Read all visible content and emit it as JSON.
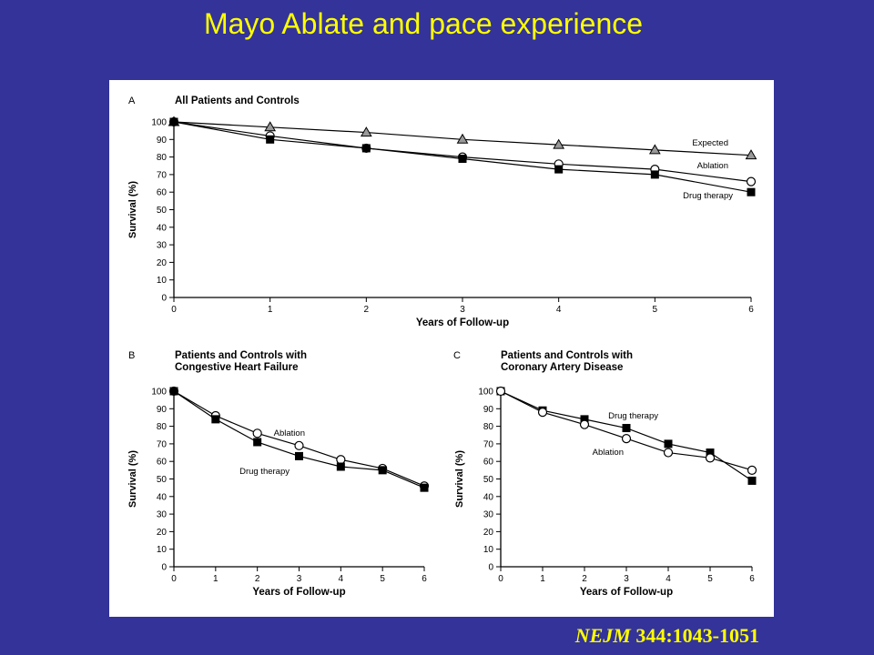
{
  "slide": {
    "title": "Mayo Ablate and pace experience",
    "citation_journal": "NEJM",
    "citation_ref": " 344:1043-1051"
  },
  "colors": {
    "background": "#333399",
    "title": "#ffff00",
    "panel": "#ffffff"
  },
  "chart_data": [
    {
      "type": "line",
      "panel_letter": "A",
      "title": "All Patients and Controls",
      "title_line2": "",
      "xlabel": "Years of Follow-up",
      "ylabel": "Survival (%)",
      "x": [
        0,
        1,
        2,
        3,
        4,
        5,
        6
      ],
      "xlim": [
        0,
        6
      ],
      "ylim": [
        0,
        100
      ],
      "yticks": [
        0,
        10,
        20,
        30,
        40,
        50,
        60,
        70,
        80,
        90,
        100
      ],
      "grid": false,
      "series": [
        {
          "name": "Expected",
          "marker": "triangle",
          "values": [
            100,
            97,
            94,
            90,
            87,
            84,
            81
          ]
        },
        {
          "name": "Ablation",
          "marker": "open-circle",
          "values": [
            100,
            92,
            85,
            80,
            76,
            73,
            66
          ]
        },
        {
          "name": "Drug therapy",
          "marker": "filled-square",
          "values": [
            100,
            90,
            85,
            79,
            73,
            70,
            60
          ]
        }
      ]
    },
    {
      "type": "line",
      "panel_letter": "B",
      "title": "Patients and Controls with",
      "title_line2": "Congestive Heart Failure",
      "xlabel": "Years of Follow-up",
      "ylabel": "Survival (%)",
      "x": [
        0,
        1,
        2,
        3,
        4,
        5,
        6
      ],
      "xlim": [
        0,
        6
      ],
      "ylim": [
        0,
        100
      ],
      "yticks": [
        0,
        10,
        20,
        30,
        40,
        50,
        60,
        70,
        80,
        90,
        100
      ],
      "grid": false,
      "series": [
        {
          "name": "Ablation",
          "marker": "open-circle",
          "values": [
            100,
            86,
            76,
            69,
            61,
            56,
            46
          ]
        },
        {
          "name": "Drug therapy",
          "marker": "filled-square",
          "values": [
            100,
            84,
            71,
            63,
            57,
            55,
            45
          ]
        }
      ]
    },
    {
      "type": "line",
      "panel_letter": "C",
      "title": "Patients and Controls with",
      "title_line2": "Coronary Artery Disease",
      "xlabel": "Years of Follow-up",
      "ylabel": "Survival (%)",
      "x": [
        0,
        1,
        2,
        3,
        4,
        5,
        6
      ],
      "xlim": [
        0,
        6
      ],
      "ylim": [
        0,
        100
      ],
      "yticks": [
        0,
        10,
        20,
        30,
        40,
        50,
        60,
        70,
        80,
        90,
        100
      ],
      "grid": false,
      "series": [
        {
          "name": "Drug therapy",
          "marker": "filled-square",
          "values": [
            100,
            89,
            84,
            79,
            70,
            65,
            49
          ]
        },
        {
          "name": "Ablation",
          "marker": "open-circle",
          "values": [
            100,
            88,
            81,
            73,
            65,
            62,
            55
          ]
        }
      ]
    }
  ]
}
